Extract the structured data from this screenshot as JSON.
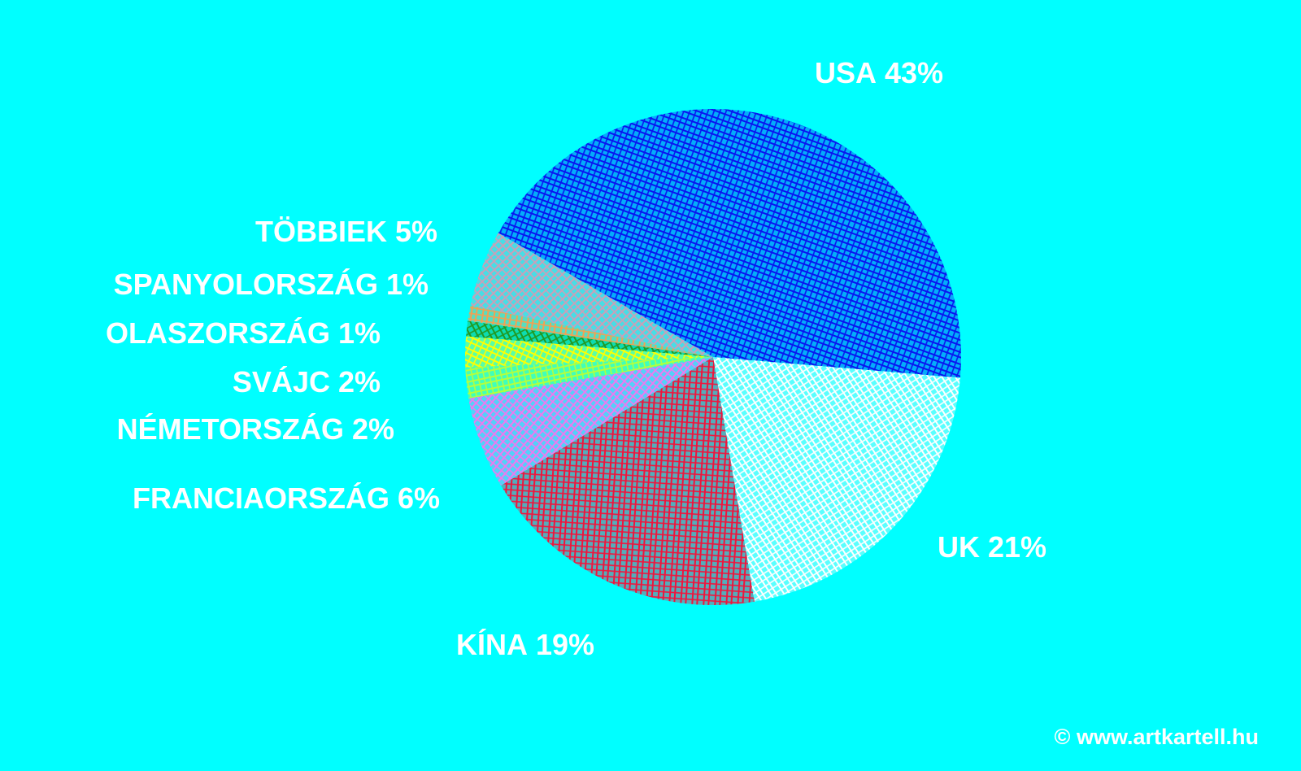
{
  "chart_data": {
    "type": "pie",
    "categories": [
      "USA",
      "UK",
      "KÍNA",
      "FRANCIAORSZÁG",
      "NÉMETORSZÁG",
      "SVÁJC",
      "OLASZORSZÁG",
      "SPANYOLORSZÁG",
      "TÖBBIEK"
    ],
    "values": [
      43,
      21,
      19,
      6,
      2,
      2,
      1,
      1,
      5
    ],
    "value_labels": [
      "43%",
      "21%",
      "19%",
      "6%",
      "2%",
      "2%",
      "1%",
      "1%",
      "5%"
    ],
    "colors": [
      "#0a14f0",
      "#ffffff",
      "#f0143c",
      "#ee78ee",
      "#b4ff3c",
      "#ffff00",
      "#229922",
      "#f4a050",
      "#c8a0b8"
    ],
    "footer": "© www.artkartell.hu"
  }
}
